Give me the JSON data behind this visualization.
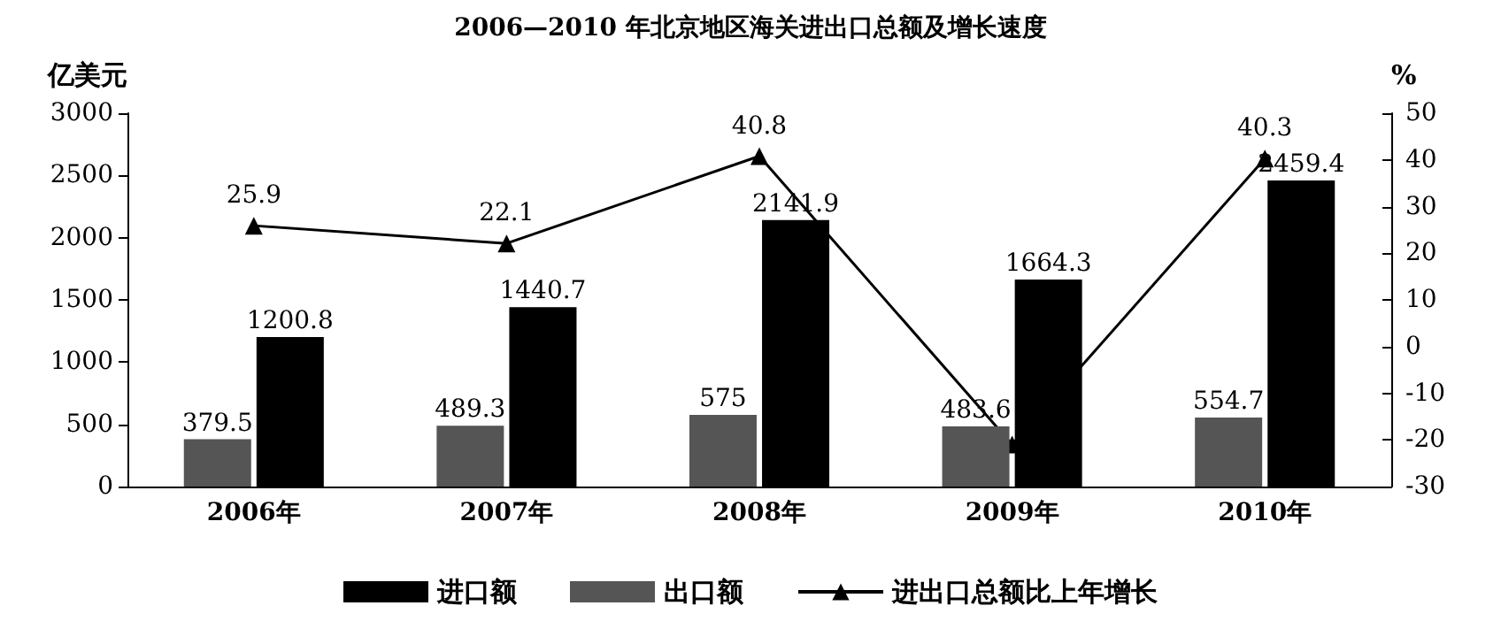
{
  "chart_data": {
    "type": "bar",
    "title": "2006—2010 年北京地区海关进出口总额及增长速度",
    "ylabel": "亿美元",
    "y2label": "%",
    "categories": [
      "2006年",
      "2007年",
      "2008年",
      "2009年",
      "2010年"
    ],
    "series": [
      {
        "name": "出口额",
        "color": "#555555",
        "values": [
          379.5,
          489.3,
          575,
          483.6,
          554.7
        ],
        "data_labels": true
      },
      {
        "name": "进口额",
        "color": "#000000",
        "values": [
          1200.8,
          1440.7,
          2141.9,
          1664.3,
          2459.4
        ],
        "data_labels": true
      },
      {
        "name": "进出口总额比上年增长",
        "type": "line",
        "axis": "y2",
        "color": "#000000",
        "marker": "triangle",
        "values": [
          25.9,
          22.1,
          40.8,
          -21,
          40.3
        ],
        "value_labels": [
          "25.9",
          "22.1",
          "40.8",
          null,
          "40.3"
        ]
      }
    ],
    "ylim": [
      0,
      3000
    ],
    "yticks": [
      0,
      500,
      1000,
      1500,
      2000,
      2500,
      3000
    ],
    "y2lim": [
      -30,
      50
    ],
    "y2ticks": [
      -30,
      -20,
      -10,
      0,
      10,
      20,
      30,
      40,
      50
    ],
    "grid": false,
    "legend": "bottom"
  }
}
